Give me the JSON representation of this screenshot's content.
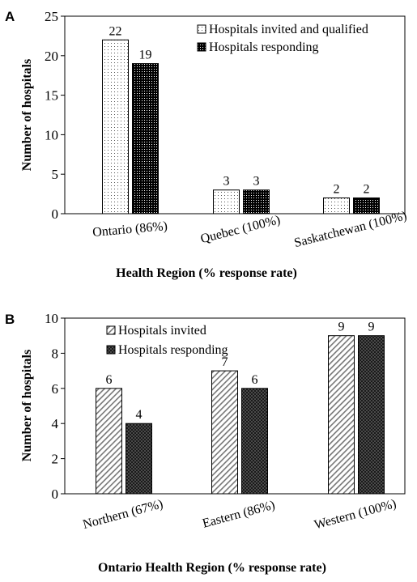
{
  "chart_data": [
    {
      "panel_label": "A",
      "type": "bar",
      "categories": [
        "Ontario (86%)",
        "Quebec (100%)",
        "Saskatchewan (100%)"
      ],
      "series": [
        {
          "name": "Hospitals invited and qualified",
          "values": [
            22,
            3,
            2
          ],
          "pattern": "dots"
        },
        {
          "name": "Hospitals responding",
          "values": [
            19,
            3,
            2
          ],
          "pattern": "dense-dots"
        }
      ],
      "xlabel": "Health Region (% response rate)",
      "ylabel": "Number of hospitals",
      "ylim": [
        0,
        25
      ],
      "yticks": [
        0,
        5,
        10,
        15,
        20,
        25
      ],
      "legend": "top-right",
      "grid": false
    },
    {
      "panel_label": "B",
      "type": "bar",
      "categories": [
        "Northern (67%)",
        "Eastern (86%)",
        "Western (100%)"
      ],
      "series": [
        {
          "name": "Hospitals invited",
          "values": [
            6,
            7,
            9
          ],
          "pattern": "hatch"
        },
        {
          "name": "Hospitals responding",
          "values": [
            4,
            6,
            9
          ],
          "pattern": "checker"
        }
      ],
      "xlabel": "Ontario Health Region (% response rate)",
      "ylabel": "Number of hospitals",
      "ylim": [
        0,
        10
      ],
      "yticks": [
        0,
        2,
        4,
        6,
        8,
        10
      ],
      "legend": "top-left",
      "grid": false
    }
  ]
}
